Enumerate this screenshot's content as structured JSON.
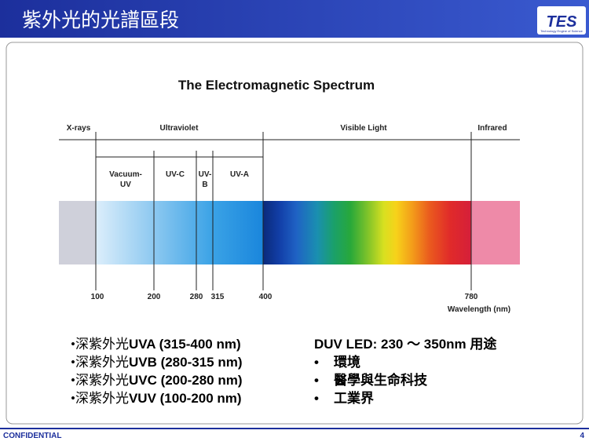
{
  "header": {
    "title": "紫外光的光譜區段",
    "logo": "TES",
    "logo_tagline": "Technology Engine of Science"
  },
  "diagram": {
    "title": "The Electromagnetic Spectrum",
    "regions": [
      "X-rays",
      "Ultraviolet",
      "Visible Light",
      "Infrared"
    ],
    "uv_bands": [
      [
        "Vacuum-",
        "UV"
      ],
      [
        "UV-C"
      ],
      [
        "UV-",
        "B"
      ],
      [
        "UV-A"
      ]
    ],
    "ticks": [
      100,
      200,
      280,
      315,
      400,
      780
    ],
    "axis_label": "Wavelength (nm)"
  },
  "left_list": [
    {
      "prefix": "•深紫外光",
      "text": "UVA (315-400 nm)"
    },
    {
      "prefix": "•深紫外光",
      "text": "UVB (280-315 nm)"
    },
    {
      "prefix": "•深紫外光",
      "text": "UVC (200-280 nm)"
    },
    {
      "prefix": "•深紫外光",
      "text": "VUV (100-200 nm)"
    }
  ],
  "right_list": {
    "heading": "DUV LED: 230 ～  350nm 用途",
    "bullet": "•",
    "items": [
      "環境",
      "醫學與生命科技",
      "工業界"
    ]
  },
  "footer": {
    "left": "CONFIDENTIAL",
    "page": "4"
  }
}
